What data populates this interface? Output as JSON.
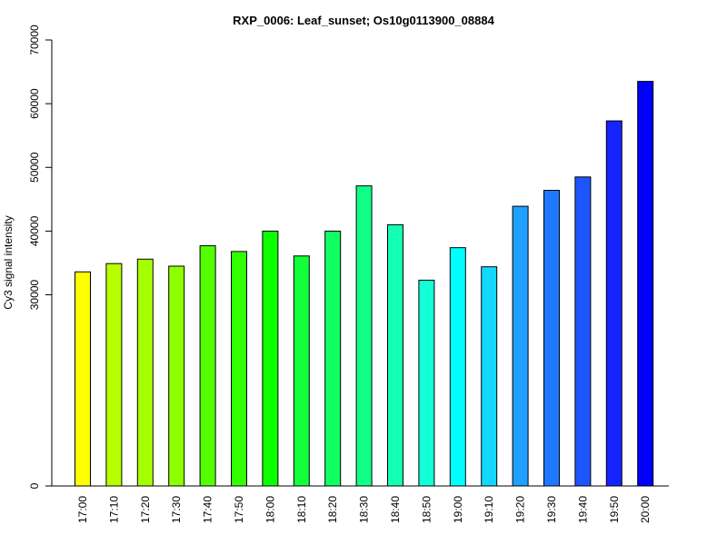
{
  "chart_data": {
    "type": "bar",
    "title": "RXP_0006: Leaf_sunset; Os10g0113900_08884",
    "xlabel": "",
    "ylabel": "Cy3 signal intensity",
    "ylim": [
      0,
      70000
    ],
    "yticks": [
      "0",
      "30000",
      "40000",
      "50000",
      "60000",
      "70000"
    ],
    "ytick_values": [
      0,
      30000,
      40000,
      50000,
      60000,
      70000
    ],
    "grid": false,
    "categories": [
      "17:00",
      "17:10",
      "17:20",
      "17:30",
      "17:40",
      "17:50",
      "18:00",
      "18:10",
      "18:20",
      "18:30",
      "18:40",
      "18:50",
      "19:00",
      "19:10",
      "19:20",
      "19:30",
      "19:40",
      "19:50",
      "20:00"
    ],
    "values": [
      33600,
      34900,
      35600,
      34500,
      37700,
      36800,
      40000,
      36100,
      40000,
      47100,
      41000,
      32300,
      37400,
      34400,
      43900,
      46400,
      48500,
      57300,
      63500
    ],
    "colors": [
      "#FFFF00",
      "#B9FF00",
      "#A6FF00",
      "#8CFF00",
      "#54FF00",
      "#33FF00",
      "#0EFF00",
      "#12FF3A",
      "#12FF64",
      "#12FF8A",
      "#12FFB4",
      "#12FFD8",
      "#00FFFF",
      "#12D8FF",
      "#1FA0FF",
      "#1F78FF",
      "#1F55FF",
      "#1424FF",
      "#0000FF"
    ]
  }
}
